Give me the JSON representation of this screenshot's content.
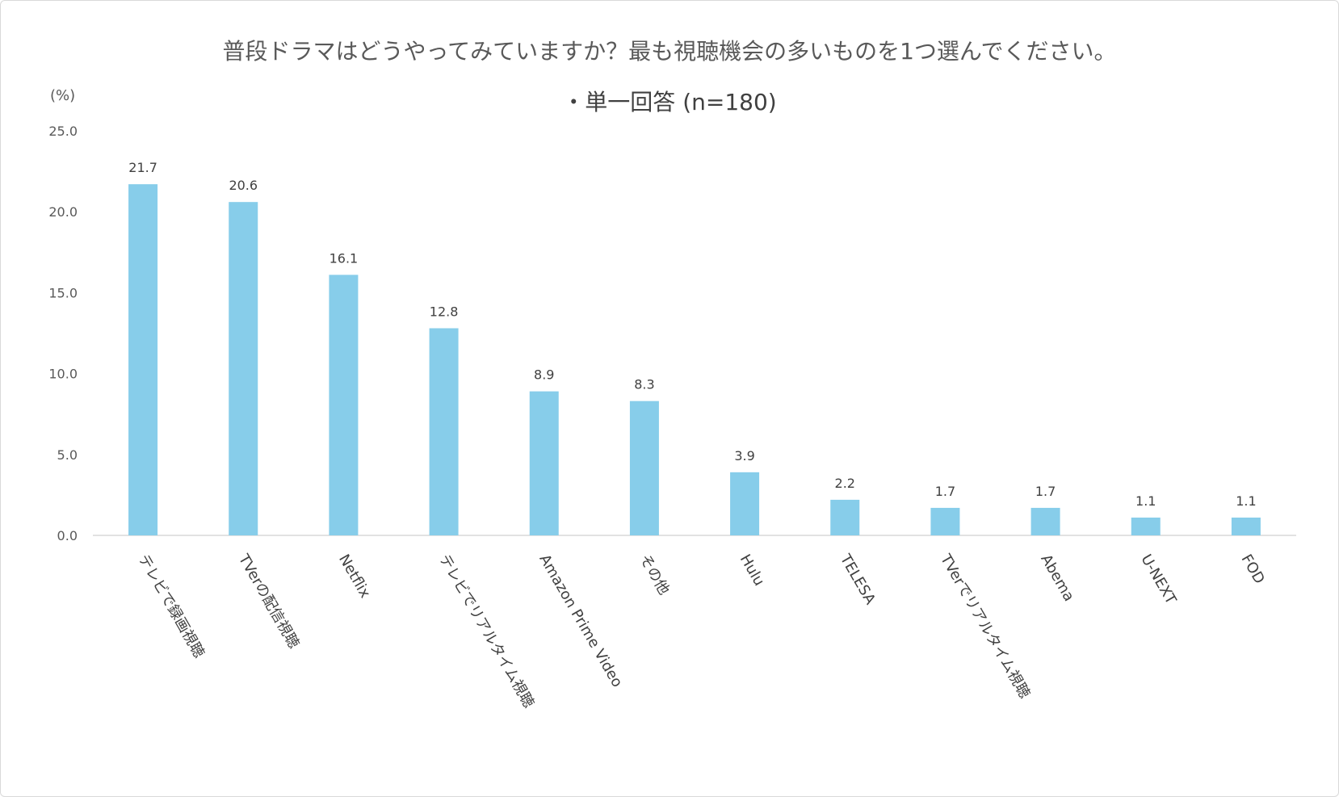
{
  "chart_data": {
    "type": "bar",
    "title": "普段ドラマはどうやってみていますか？最も視聴機会の多いものを1つ選んでください。",
    "subtitle": "・単一回答 (n=180)",
    "ylabel": "(%)",
    "ylim": [
      0,
      25
    ],
    "yticks": [
      "0.0",
      "5.0",
      "10.0",
      "15.0",
      "20.0",
      "25.0"
    ],
    "grid": false,
    "bar_color": "#87cdea",
    "categories": [
      "テレビで録画視聴",
      "TVerの配信視聴",
      "Netflix",
      "テレビでリアルタイム視聴",
      "Amazon Prime Video",
      "その他",
      "Hulu",
      "TELESA",
      "TVerでリアルタイム視聴",
      "Abema",
      "U-NEXT",
      "FOD"
    ],
    "values": [
      21.7,
      20.6,
      16.1,
      12.8,
      8.9,
      8.3,
      3.9,
      2.2,
      1.7,
      1.7,
      1.1,
      1.1
    ],
    "value_labels": [
      "21.7",
      "20.6",
      "16.1",
      "12.8",
      "8.9",
      "8.3",
      "3.9",
      "2.2",
      "1.7",
      "1.7",
      "1.1",
      "1.1"
    ]
  }
}
